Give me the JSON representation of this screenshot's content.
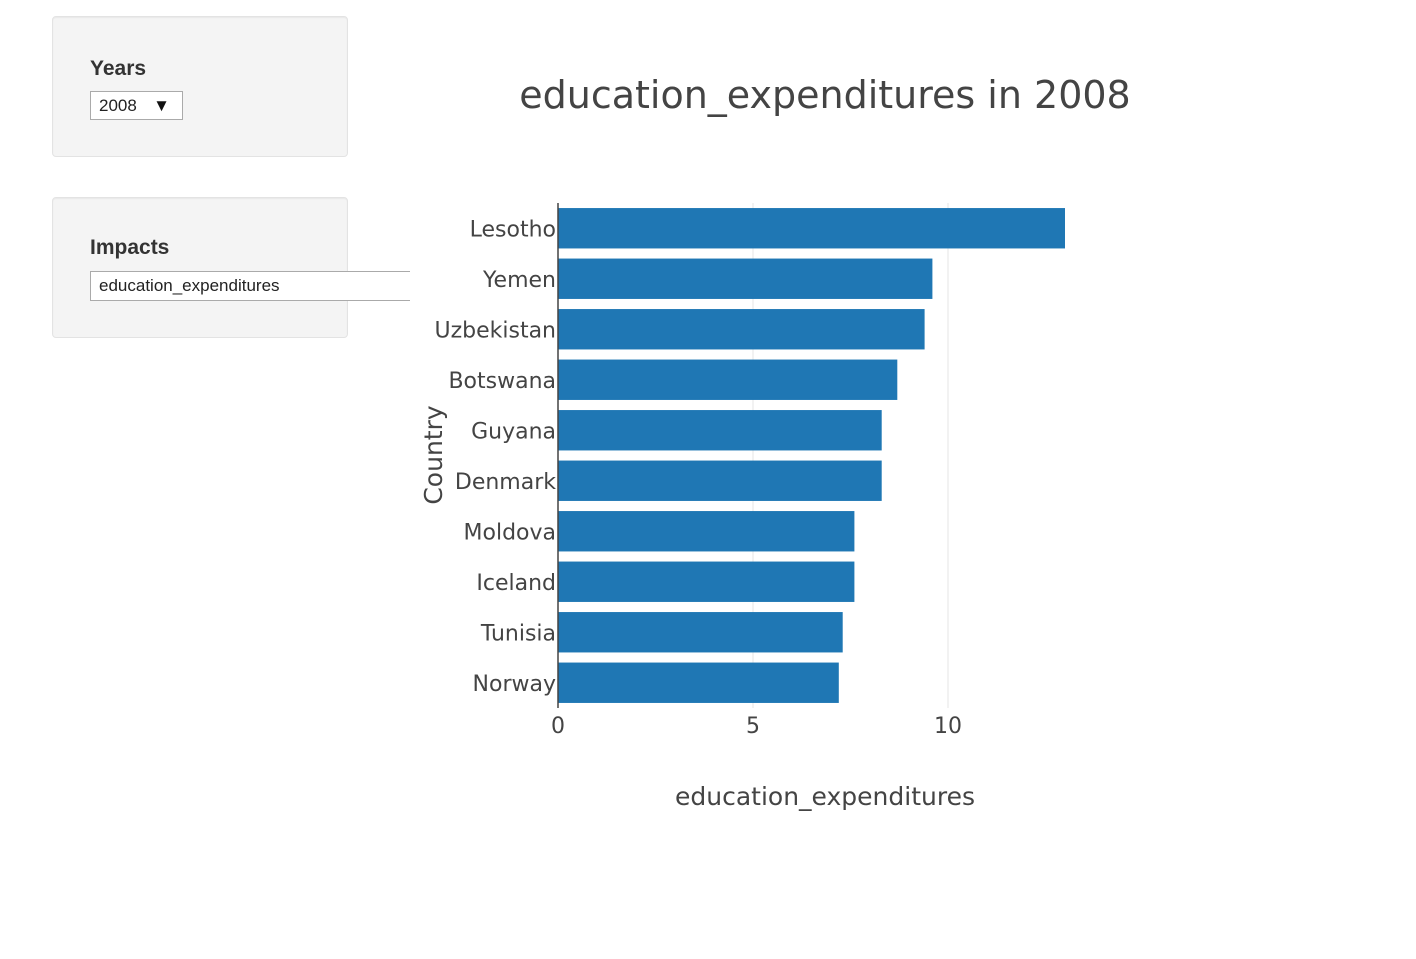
{
  "controls": {
    "years": {
      "label": "Years",
      "selected": "2008"
    },
    "impacts": {
      "label": "Impacts",
      "value": "education_expenditures"
    }
  },
  "chart_data": {
    "type": "bar",
    "orientation": "horizontal",
    "title": "education_expenditures in 2008",
    "xlabel": "education_expenditures",
    "ylabel": "Country",
    "categories": [
      "Lesotho",
      "Yemen",
      "Uzbekistan",
      "Botswana",
      "Guyana",
      "Denmark",
      "Moldova",
      "Iceland",
      "Tunisia",
      "Norway"
    ],
    "values": [
      13.0,
      9.6,
      9.4,
      8.7,
      8.3,
      8.3,
      7.6,
      7.6,
      7.3,
      7.2
    ],
    "xlim": [
      0,
      13.5
    ],
    "xticks": [
      0,
      5,
      10
    ],
    "grid": true,
    "bar_color": "#1f77b4",
    "grid_color": "#e6e6e6"
  }
}
